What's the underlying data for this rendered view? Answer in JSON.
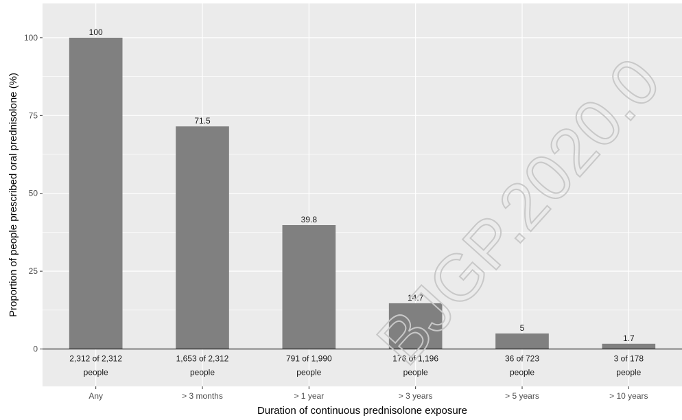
{
  "chart_data": {
    "type": "bar",
    "title": "",
    "xlabel": "Duration of continuous prednisolone exposure",
    "ylabel": "Proportion of people prescribed oral prednisolone (%)",
    "categories": [
      "Any",
      "> 3 months",
      "> 1 year",
      "> 3 years",
      "> 5 years",
      "> 10 years"
    ],
    "values": [
      100,
      71.5,
      39.8,
      14.7,
      5,
      1.7
    ],
    "value_labels": [
      "100",
      "71.5",
      "39.8",
      "14.7",
      "5",
      "1.7"
    ],
    "counts": [
      [
        "2,312 of 2,312",
        "people"
      ],
      [
        "1,653 of 2,312",
        "people"
      ],
      [
        "791 of 1,990",
        "people"
      ],
      [
        "176 of 1,196",
        "people"
      ],
      [
        "36 of 723",
        "people"
      ],
      [
        "3 of 178",
        "people"
      ]
    ],
    "ylim": [
      -12,
      111
    ],
    "yticks": [
      0,
      25,
      50,
      75,
      100
    ],
    "grid": true,
    "legend": "none",
    "colors": {
      "bar": "#808080",
      "panel": "#ebebeb",
      "grid": "#ffffff",
      "zero_line": "#000000"
    }
  },
  "watermark": "BJGP.2020.0"
}
